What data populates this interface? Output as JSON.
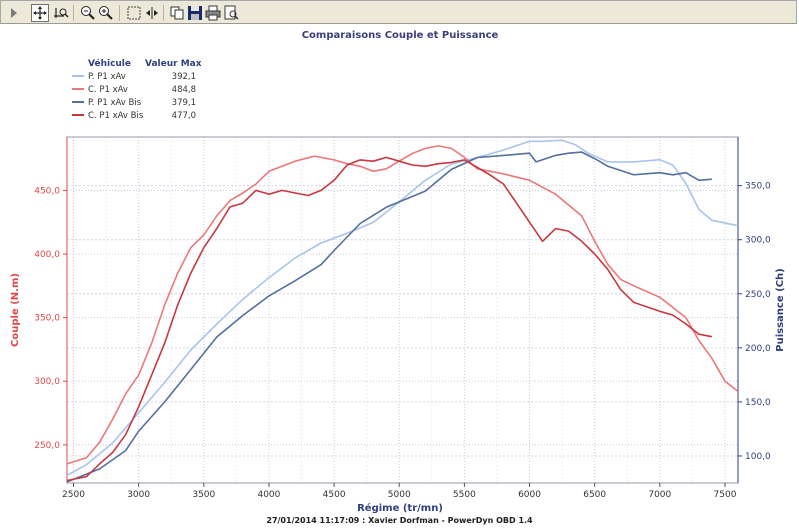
{
  "toolbar": {
    "buttons": [
      {
        "name": "play-icon"
      },
      {
        "name": "pan-icon"
      },
      {
        "name": "zoom-axis-icon"
      },
      {
        "name": "zoom-out-icon"
      },
      {
        "name": "zoom-in-icon"
      },
      {
        "name": "select-rect-icon"
      },
      {
        "name": "fit-width-icon"
      },
      {
        "name": "copy-icon"
      },
      {
        "name": "save-icon"
      },
      {
        "name": "print-icon"
      },
      {
        "name": "print-preview-icon"
      }
    ]
  },
  "colors": {
    "couple_axis": "#e04848",
    "puissance_axis": "#2e3f80",
    "series_p1": "#a8c4ec",
    "series_c1": "#ec7878",
    "series_p2": "#52709e",
    "series_c2": "#c8383e",
    "title": "#3a3f7a"
  },
  "footer": "27/01/2014 11:17:09 : Xavier Dorfman - PowerDyn OBD 1.4",
  "chart_data": {
    "type": "line",
    "title": "Comparaisons Couple et Puissance",
    "xlabel": "Régime (tr/mn)",
    "ylabel_left": "Couple (N.m)",
    "ylabel_right": "Puissance (Ch)",
    "xlim": [
      2450,
      7600
    ],
    "ylim_left": [
      220,
      492
    ],
    "ylim_right": [
      75,
      395
    ],
    "x_ticks": [
      "2500",
      "3000",
      "3500",
      "4000",
      "4500",
      "5000",
      "5500",
      "6000",
      "6500",
      "7000",
      "7500"
    ],
    "y_left_ticks": [
      "250,0",
      "300,0",
      "350,0",
      "400,0",
      "450,0"
    ],
    "y_right_ticks": [
      "100,0",
      "150,0",
      "200,0",
      "250,0",
      "300,0",
      "350,0"
    ],
    "grid": true,
    "legend": {
      "position": "top-left",
      "header_vehicle": "Véhicule",
      "header_max": "Valeur Max",
      "entries": [
        {
          "label": "P. P1 xAv",
          "max": "392,1",
          "color": "#a8c4ec"
        },
        {
          "label": "C. P1 xAv",
          "max": "484,8",
          "color": "#ec7878"
        },
        {
          "label": "P. P1 xAv Bis",
          "max": "379,1",
          "color": "#52709e"
        },
        {
          "label": "C. P1 xAv Bis",
          "max": "477,0",
          "color": "#c8383e"
        }
      ]
    },
    "series": [
      {
        "name": "P. P1 xAv",
        "axis": "right",
        "color": "#a8c4ec",
        "points": [
          [
            2450,
            82
          ],
          [
            2600,
            92
          ],
          [
            2800,
            112
          ],
          [
            3000,
            140
          ],
          [
            3200,
            168
          ],
          [
            3400,
            198
          ],
          [
            3600,
            222
          ],
          [
            3800,
            245
          ],
          [
            4000,
            265
          ],
          [
            4200,
            283
          ],
          [
            4400,
            297
          ],
          [
            4600,
            306
          ],
          [
            4800,
            316
          ],
          [
            5000,
            335
          ],
          [
            5200,
            355
          ],
          [
            5400,
            370
          ],
          [
            5600,
            376
          ],
          [
            5800,
            383
          ],
          [
            6000,
            391
          ],
          [
            6100,
            391
          ],
          [
            6250,
            392
          ],
          [
            6350,
            388
          ],
          [
            6450,
            380
          ],
          [
            6600,
            372
          ],
          [
            6800,
            372
          ],
          [
            7000,
            374
          ],
          [
            7100,
            369
          ],
          [
            7200,
            352
          ],
          [
            7300,
            328
          ],
          [
            7400,
            318
          ],
          [
            7600,
            313
          ]
        ]
      },
      {
        "name": "C. P1 xAv",
        "axis": "left",
        "color": "#ec7878",
        "points": [
          [
            2450,
            235
          ],
          [
            2600,
            240
          ],
          [
            2700,
            252
          ],
          [
            2800,
            270
          ],
          [
            2900,
            290
          ],
          [
            3000,
            305
          ],
          [
            3100,
            330
          ],
          [
            3200,
            360
          ],
          [
            3300,
            385
          ],
          [
            3400,
            405
          ],
          [
            3500,
            415
          ],
          [
            3600,
            430
          ],
          [
            3700,
            442
          ],
          [
            3800,
            448
          ],
          [
            3900,
            455
          ],
          [
            4000,
            465
          ],
          [
            4200,
            473
          ],
          [
            4350,
            477
          ],
          [
            4500,
            474
          ],
          [
            4600,
            471
          ],
          [
            4700,
            469
          ],
          [
            4800,
            465
          ],
          [
            4900,
            467
          ],
          [
            5000,
            473
          ],
          [
            5100,
            479
          ],
          [
            5200,
            483
          ],
          [
            5300,
            485
          ],
          [
            5400,
            483
          ],
          [
            5500,
            476
          ],
          [
            5600,
            467
          ],
          [
            5800,
            463
          ],
          [
            6000,
            458
          ],
          [
            6200,
            447
          ],
          [
            6400,
            430
          ],
          [
            6500,
            410
          ],
          [
            6600,
            392
          ],
          [
            6700,
            380
          ],
          [
            6800,
            375
          ],
          [
            7000,
            366
          ],
          [
            7200,
            350
          ],
          [
            7300,
            332
          ],
          [
            7400,
            318
          ],
          [
            7500,
            300
          ],
          [
            7600,
            292
          ]
        ]
      },
      {
        "name": "P. P1 xAv Bis",
        "axis": "right",
        "color": "#52709e",
        "points": [
          [
            2450,
            76
          ],
          [
            2700,
            88
          ],
          [
            2900,
            105
          ],
          [
            3000,
            123
          ],
          [
            3200,
            150
          ],
          [
            3400,
            180
          ],
          [
            3600,
            210
          ],
          [
            3800,
            230
          ],
          [
            4000,
            248
          ],
          [
            4200,
            262
          ],
          [
            4400,
            277
          ],
          [
            4500,
            290
          ],
          [
            4700,
            315
          ],
          [
            4900,
            330
          ],
          [
            5000,
            335
          ],
          [
            5200,
            345
          ],
          [
            5400,
            365
          ],
          [
            5600,
            376
          ],
          [
            5800,
            378
          ],
          [
            6000,
            380
          ],
          [
            6050,
            372
          ],
          [
            6200,
            378
          ],
          [
            6300,
            380
          ],
          [
            6400,
            381
          ],
          [
            6500,
            375
          ],
          [
            6600,
            368
          ],
          [
            6800,
            360
          ],
          [
            7000,
            362
          ],
          [
            7100,
            360
          ],
          [
            7200,
            362
          ],
          [
            7300,
            355
          ],
          [
            7400,
            356
          ]
        ]
      },
      {
        "name": "C. P1 xAv Bis",
        "axis": "left",
        "color": "#c8383e",
        "points": [
          [
            2450,
            222
          ],
          [
            2600,
            225
          ],
          [
            2700,
            235
          ],
          [
            2800,
            244
          ],
          [
            2900,
            258
          ],
          [
            3000,
            280
          ],
          [
            3100,
            305
          ],
          [
            3200,
            330
          ],
          [
            3300,
            360
          ],
          [
            3400,
            385
          ],
          [
            3500,
            405
          ],
          [
            3600,
            420
          ],
          [
            3700,
            437
          ],
          [
            3800,
            440
          ],
          [
            3900,
            450
          ],
          [
            4000,
            447
          ],
          [
            4100,
            450
          ],
          [
            4300,
            446
          ],
          [
            4400,
            450
          ],
          [
            4500,
            458
          ],
          [
            4600,
            470
          ],
          [
            4700,
            474
          ],
          [
            4800,
            473
          ],
          [
            4900,
            476
          ],
          [
            5000,
            473
          ],
          [
            5100,
            470
          ],
          [
            5200,
            469
          ],
          [
            5300,
            471
          ],
          [
            5400,
            472
          ],
          [
            5500,
            474
          ],
          [
            5600,
            468
          ],
          [
            5700,
            462
          ],
          [
            5800,
            455
          ],
          [
            5900,
            440
          ],
          [
            6000,
            425
          ],
          [
            6100,
            410
          ],
          [
            6200,
            420
          ],
          [
            6300,
            418
          ],
          [
            6400,
            410
          ],
          [
            6500,
            400
          ],
          [
            6600,
            388
          ],
          [
            6700,
            372
          ],
          [
            6800,
            362
          ],
          [
            7000,
            355
          ],
          [
            7100,
            352
          ],
          [
            7200,
            345
          ],
          [
            7300,
            337
          ],
          [
            7400,
            335
          ]
        ]
      }
    ]
  }
}
